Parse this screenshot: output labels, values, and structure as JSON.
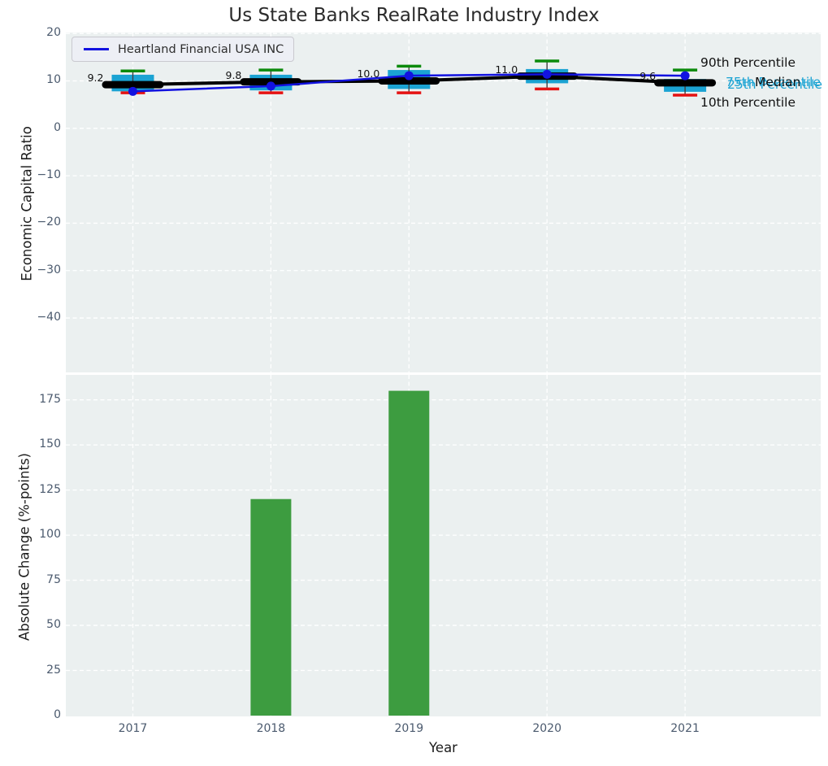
{
  "chart_data": [
    {
      "type": "boxplot+line",
      "title": "Us State Banks RealRate Industry Index",
      "ylabel": "Economic Capital Ratio",
      "xlabel": "Year",
      "ylim": [
        -51.5,
        20.2
      ],
      "yticks": [
        20,
        10,
        0,
        -10,
        -20,
        -30,
        -40
      ],
      "years": [
        2017,
        2018,
        2019,
        2020,
        2021
      ],
      "grid": "white dashed on light gray",
      "boxes": [
        {
          "year": 2017,
          "p10": 7.5,
          "p25": 7.8,
          "median": 9.2,
          "p75": 11.3,
          "p90": 12.1
        },
        {
          "year": 2018,
          "p10": 7.5,
          "p25": 8.0,
          "median": 9.8,
          "p75": 11.3,
          "p90": 12.3
        },
        {
          "year": 2019,
          "p10": 7.5,
          "p25": 8.3,
          "median": 10.0,
          "p75": 12.3,
          "p90": 13.1
        },
        {
          "year": 2020,
          "p10": 8.3,
          "p25": 9.5,
          "median": 11.0,
          "p75": 12.5,
          "p90": 14.2
        },
        {
          "year": 2021,
          "p10": 7.0,
          "p25": 7.7,
          "median": 9.6,
          "p75": 10.4,
          "p90": 12.3
        }
      ],
      "median_labels": [
        "9.2",
        "9.8",
        "10.0",
        "11.0",
        "9.6"
      ],
      "series": [
        {
          "name": "Heartland Financial USA INC",
          "values": [
            7.8,
            8.9,
            11.1,
            11.4,
            11.1
          ],
          "color": "#1212e0"
        }
      ],
      "percentile_labels": {
        "p90": "90th Percentile",
        "p75": "75th Percentile",
        "median": "Median",
        "p25": "25th Percentile",
        "p10": "10th Percentile"
      },
      "legend_position": "upper left"
    },
    {
      "type": "bar",
      "ylabel": "Absolute Change (%-points)",
      "xlabel": "Year",
      "categories": [
        2017,
        2018,
        2019,
        2020,
        2021
      ],
      "values": [
        0,
        120,
        180,
        0,
        0
      ],
      "yticks": [
        0,
        25,
        50,
        75,
        100,
        125,
        150,
        175
      ],
      "ylim": [
        0,
        188.8
      ],
      "bar_color": "#3d9c40"
    }
  ],
  "colors": {
    "plot_background": "#ebf0f0",
    "gridline": "#ffffff",
    "box_fill": "#1ba3d3",
    "median_line": "#000000",
    "company_line": "#1212e0",
    "whisker": "#3f3f3f",
    "cap_top_90th": "#0b8a0b",
    "cap_bottom_10th": "#e51212",
    "bar": "#3d9c40",
    "tick_text": "#4b5a6e",
    "percentile_label_cyan": "#1ba3d3"
  }
}
